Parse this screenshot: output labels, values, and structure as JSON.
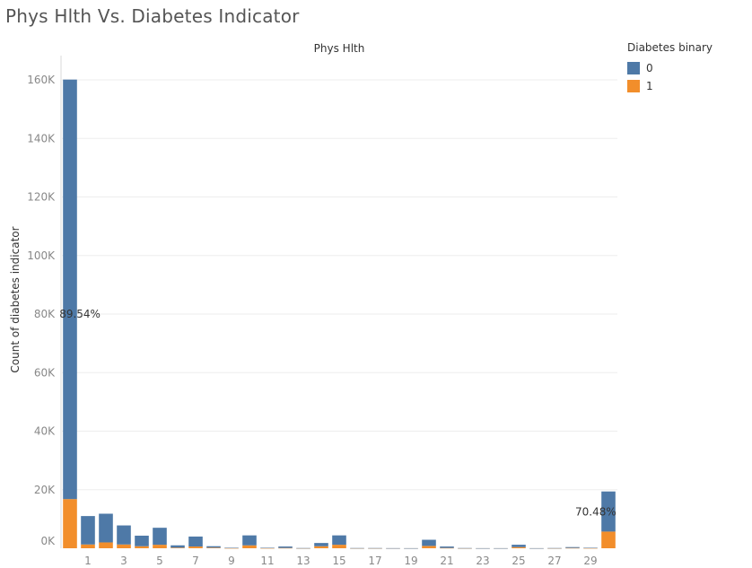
{
  "title": "Phys Hlth Vs. Diabetes Indicator",
  "legend": {
    "title": "Diabetes binary",
    "items": [
      {
        "label": "0",
        "color": "#4e79a7"
      },
      {
        "label": "1",
        "color": "#f28e2b"
      }
    ]
  },
  "chart_data": {
    "type": "bar",
    "stacked": true,
    "title": "Phys Hlth",
    "xlabel": "",
    "ylabel": "Count of diabetes indicator",
    "categories": [
      0,
      1,
      2,
      3,
      4,
      5,
      6,
      7,
      8,
      9,
      10,
      11,
      12,
      13,
      14,
      15,
      16,
      17,
      18,
      19,
      20,
      21,
      22,
      23,
      24,
      25,
      26,
      27,
      28,
      29,
      30
    ],
    "x_tick_labels": [
      "1",
      "3",
      "5",
      "7",
      "9",
      "11",
      "13",
      "15",
      "17",
      "19",
      "21",
      "23",
      "25",
      "27",
      "29"
    ],
    "y_ticks": [
      0,
      20000,
      40000,
      60000,
      80000,
      100000,
      120000,
      140000,
      160000
    ],
    "y_tick_labels": [
      "0K",
      "20K",
      "40K",
      "60K",
      "80K",
      "100K",
      "120K",
      "140K",
      "160K"
    ],
    "ylim": [
      0,
      160000
    ],
    "grid": true,
    "legend_position": "top-right",
    "series": [
      {
        "name": "0",
        "color": "#4e79a7",
        "values": [
          143300,
          9700,
          9800,
          6500,
          3600,
          5800,
          800,
          3400,
          500,
          150,
          3400,
          150,
          500,
          50,
          1100,
          3200,
          50,
          50,
          30,
          20,
          2100,
          500,
          50,
          20,
          20,
          800,
          20,
          50,
          300,
          150,
          13700
        ]
      },
      {
        "name": "1",
        "color": "#f28e2b",
        "values": [
          16800,
          1300,
          2000,
          1300,
          700,
          1200,
          200,
          600,
          200,
          50,
          1000,
          50,
          100,
          20,
          700,
          1200,
          20,
          20,
          10,
          10,
          800,
          100,
          20,
          10,
          10,
          400,
          10,
          20,
          100,
          50,
          5700
        ]
      }
    ],
    "annotations": [
      {
        "category": 0,
        "text": "89.54%"
      },
      {
        "category": 30,
        "text": "70.48%"
      }
    ]
  }
}
